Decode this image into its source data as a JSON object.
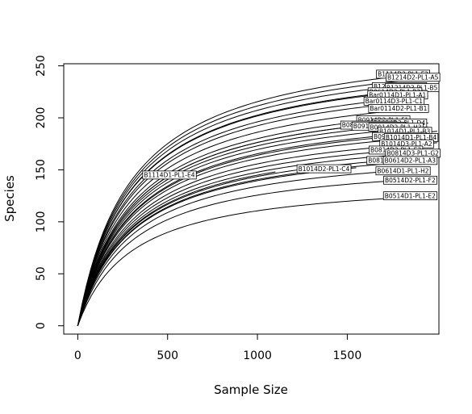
{
  "chart_data": {
    "type": "line",
    "title": "",
    "xlabel": "Sample Size",
    "ylabel": "Species",
    "xlim": [
      -78,
      2010
    ],
    "ylim": [
      -8,
      252
    ],
    "xticks": [
      0,
      500,
      1000,
      1500
    ],
    "yticks": [
      0,
      50,
      100,
      150,
      200,
      250
    ],
    "grid": false,
    "legend": "none",
    "series": [
      {
        "name": "B1114D2-PL1-F2",
        "x_end": 1900,
        "y_end": 242
      },
      {
        "name": "B1214D2-PL1-A5",
        "x_end": 2000,
        "y_end": 239
      },
      {
        "name": "B1214D2-PL1-H4",
        "x_end": 1700,
        "y_end": 229
      },
      {
        "name": "B1214D3-PL1-B5",
        "x_end": 2000,
        "y_end": 229
      },
      {
        "name": "B0614D2-PL1-B2",
        "x_end": 1700,
        "y_end": 223
      },
      {
        "name": "Bar0114D1-PL1-A1",
        "x_end": 1950,
        "y_end": 221
      },
      {
        "name": "Bar0114D3-PL1-C1",
        "x_end": 1900,
        "y_end": 216
      },
      {
        "name": "Bar0114D2-PL1-B1",
        "x_end": 1900,
        "y_end": 209
      },
      {
        "name": "B0914D2-PL1-F1",
        "x_end": 1650,
        "y_end": 198
      },
      {
        "name": "B1014D3-PL1-D4",
        "x_end": 1950,
        "y_end": 195
      },
      {
        "name": "B0814D3-PL1-G1",
        "x_end": 1550,
        "y_end": 192
      },
      {
        "name": "B0914D1-PL1-E1",
        "x_end": 1600,
        "y_end": 193
      },
      {
        "name": "B0914D2-PL1-H3",
        "x_end": 1950,
        "y_end": 191
      },
      {
        "name": "B1014D1-PL1-B3",
        "x_end": 2000,
        "y_end": 187
      },
      {
        "name": "B0914D3-PL1-H1",
        "x_end": 1750,
        "y_end": 182
      },
      {
        "name": "B1014D1-PL1-B4",
        "x_end": 2000,
        "y_end": 182
      },
      {
        "name": "B1014D3-PL1-A2",
        "x_end": 2000,
        "y_end": 176
      },
      {
        "name": "B0814D2-PL1-E3",
        "x_end": 1800,
        "y_end": 169
      },
      {
        "name": "B0814D3-PL1-G2",
        "x_end": 2000,
        "y_end": 167
      },
      {
        "name": "B0814D1-PL1-D3",
        "x_end": 1800,
        "y_end": 160
      },
      {
        "name": "B0614D2-PL1-A3",
        "x_end": 2000,
        "y_end": 159
      },
      {
        "name": "B1114D1-PL1-E4",
        "x_end": 1100,
        "y_end": 148
      },
      {
        "name": "B1014D2-PL1-C4",
        "x_end": 1550,
        "y_end": 152
      },
      {
        "name": "B0614D1-PL1-H2",
        "x_end": 1950,
        "y_end": 151
      },
      {
        "name": "B0514D2-PL1-F2",
        "x_end": 2000,
        "y_end": 142
      },
      {
        "name": "B0514D1-PL1-E2",
        "x_end": 2000,
        "y_end": 125
      }
    ],
    "labels": [
      {
        "text": "B1114D2-PL1-F2",
        "x": 1810,
        "y": 242
      },
      {
        "text": "B1214D2-PL1-A5",
        "x": 1865,
        "y": 239
      },
      {
        "text": "B1214D2-PL1-H4",
        "x": 1790,
        "y": 230
      },
      {
        "text": "B1214D3-PL1-B5",
        "x": 1860,
        "y": 229
      },
      {
        "text": "B0614D2-PL1-B2",
        "x": 1765,
        "y": 225
      },
      {
        "text": "Bar0114D1-PL1-A1",
        "x": 1780,
        "y": 222
      },
      {
        "text": "Bar0114D3-PL1-C1",
        "x": 1760,
        "y": 216
      },
      {
        "text": "Bar0114D2-PL1-B1",
        "x": 1785,
        "y": 209
      },
      {
        "text": "B0914D2-PL1-F1",
        "x": 1700,
        "y": 198
      },
      {
        "text": "B1014D3-PL1-D4",
        "x": 1790,
        "y": 195
      },
      {
        "text": "B0814D3-PL1-G1",
        "x": 1615,
        "y": 193
      },
      {
        "text": "B0914D1-PL1-E1",
        "x": 1675,
        "y": 192
      },
      {
        "text": "B0914D2-PL1-H3",
        "x": 1770,
        "y": 191
      },
      {
        "text": "B1014D1-PL1-B3",
        "x": 1820,
        "y": 187
      },
      {
        "text": "B0914D3-PL1-H1",
        "x": 1790,
        "y": 182
      },
      {
        "text": "B1014D1-PL1-B4",
        "x": 1855,
        "y": 181
      },
      {
        "text": "B1014D3-PL1-A2",
        "x": 1830,
        "y": 175
      },
      {
        "text": "B0814D2-PL1-E3",
        "x": 1770,
        "y": 169
      },
      {
        "text": "B0814D3-PL1-G2",
        "x": 1865,
        "y": 166
      },
      {
        "text": "B0814D1-PL1-D3",
        "x": 1760,
        "y": 159
      },
      {
        "text": "B0614D2-PL1-A3",
        "x": 1850,
        "y": 159
      },
      {
        "text": "B1114D1-PL1-E4",
        "x": 510,
        "y": 145
      },
      {
        "text": "B1014D2-PL1-C4",
        "x": 1370,
        "y": 151
      },
      {
        "text": "B0614D1-PL1-H2",
        "x": 1810,
        "y": 149
      },
      {
        "text": "B0514D2-PL1-F2",
        "x": 1850,
        "y": 140
      },
      {
        "text": "B0514D1-PL1-E2",
        "x": 1850,
        "y": 125
      }
    ]
  }
}
